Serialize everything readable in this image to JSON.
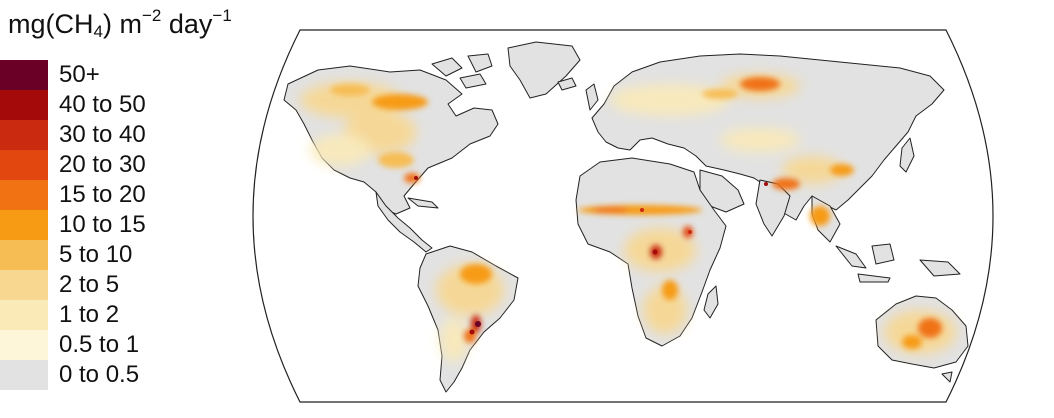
{
  "unit": {
    "prefix": "mg(CH",
    "sub": "4",
    "mid": ") m",
    "sup1": "−2",
    "space": " day",
    "sup2": "−1"
  },
  "legend": [
    {
      "label": "50+",
      "color": "#6b0026"
    },
    {
      "label": "40 to 50",
      "color": "#a50a0a"
    },
    {
      "label": "30 to 40",
      "color": "#c92a10"
    },
    {
      "label": "20 to 30",
      "color": "#e2470f"
    },
    {
      "label": "15 to 20",
      "color": "#f07212"
    },
    {
      "label": "10 to 15",
      "color": "#f79b14"
    },
    {
      "label": "5 to 10",
      "color": "#f7bd55"
    },
    {
      "label": "2 to 5",
      "color": "#f8d790"
    },
    {
      "label": "1 to 2",
      "color": "#faeab8"
    },
    {
      "label": "0.5 to 1",
      "color": "#fdf6d8"
    },
    {
      "label": "0 to 0.5",
      "color": "#e2e2e2"
    }
  ],
  "map": {
    "land_color": "#e2e2e2",
    "ocean_color": "#ffffff",
    "coast_color": "#222222"
  }
}
